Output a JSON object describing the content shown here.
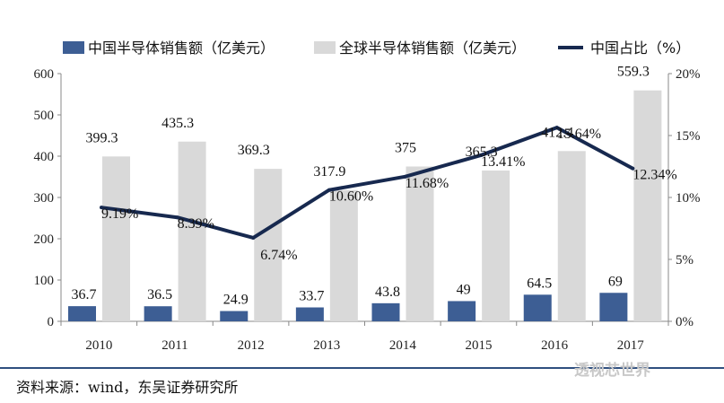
{
  "chart_data": {
    "type": "bar",
    "categories": [
      "2010",
      "2011",
      "2012",
      "2013",
      "2014",
      "2015",
      "2016",
      "2017"
    ],
    "series": [
      {
        "name": "中国半导体销售额（亿美元）",
        "type": "bar",
        "axis": "left",
        "color": "#3d5e94",
        "values": [
          36.7,
          36.5,
          24.9,
          33.7,
          43.8,
          49,
          64.5,
          69
        ],
        "labels": [
          "36.7",
          "36.5",
          "24.9",
          "33.7",
          "43.8",
          "49",
          "64.5",
          "69"
        ]
      },
      {
        "name": "全球半导体销售额（亿美元）",
        "type": "bar",
        "axis": "left",
        "color": "#d9d9d9",
        "values": [
          399.3,
          435.3,
          369.3,
          317.9,
          375,
          365.3,
          412.4,
          559.3
        ],
        "labels": [
          "399.3",
          "435.3",
          "369.3",
          "317.9",
          "375",
          "365.3",
          "412.4",
          "559.3"
        ]
      },
      {
        "name": "中国占比（%）",
        "type": "line",
        "axis": "right",
        "color": "#17294f",
        "values": [
          9.19,
          8.39,
          6.74,
          10.6,
          11.68,
          13.41,
          15.64,
          12.34
        ],
        "labels": [
          "9.19%",
          "8.39%",
          "6.74%",
          "10.60%",
          "11.68%",
          "13.41%",
          "15.64%",
          "12.34%"
        ]
      }
    ],
    "y_left": {
      "min": 0,
      "max": 600,
      "ticks": [
        "0",
        "100",
        "200",
        "300",
        "400",
        "500",
        "600"
      ]
    },
    "y_right": {
      "min": 0,
      "max": 20,
      "ticks": [
        "0%",
        "5%",
        "10%",
        "15%",
        "20%"
      ]
    },
    "grid": false,
    "legend_position": "top"
  },
  "source_text": "资料来源：wind，东吴证券研究所",
  "watermark_text": "透视芯世界"
}
